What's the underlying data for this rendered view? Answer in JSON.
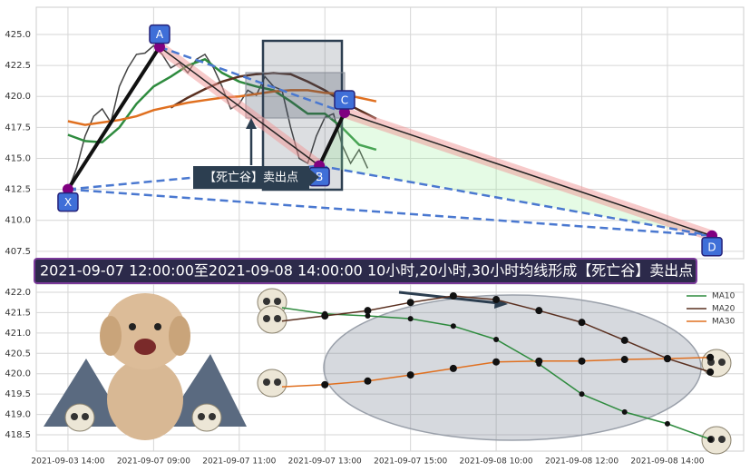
{
  "chart_data": [
    {
      "type": "line",
      "ylim": [
        406.9,
        427.2
      ],
      "yticks": [
        407.5,
        410.0,
        412.5,
        415.0,
        417.5,
        420.0,
        422.5,
        425.0
      ],
      "xlim": [
        -0.74,
        15.78
      ],
      "x": [
        0,
        0.4,
        0.8,
        1.2,
        1.6,
        2.0,
        2.4,
        2.8,
        3.2,
        3.6,
        4.0,
        4.4,
        4.8,
        5.2,
        5.6,
        6.0,
        6.4,
        6.8,
        7.2
      ],
      "price": {
        "color": "#444444",
        "x": [
          0,
          0.2,
          0.4,
          0.6,
          0.8,
          1.0,
          1.2,
          1.4,
          1.6,
          1.8,
          2.0,
          2.2,
          2.4,
          2.6,
          2.8,
          3.0,
          3.2,
          3.4,
          3.6,
          3.8,
          4.0,
          4.2,
          4.4,
          4.6,
          4.8,
          5.0,
          5.2,
          5.4,
          5.6,
          5.8,
          6.0,
          6.2,
          6.4,
          6.6,
          6.8,
          7.0
        ],
        "values": [
          412.4,
          414.2,
          416.8,
          418.4,
          419,
          417.9,
          420.8,
          422.3,
          423.4,
          423.5,
          424.1,
          423.4,
          422.3,
          422.7,
          421.9,
          423,
          423.4,
          422.3,
          420.8,
          419,
          419.4,
          420.5,
          420.1,
          421.6,
          420.8,
          420.5,
          417.5,
          415,
          414.6,
          416.8,
          418.3,
          418.6,
          416.1,
          414.6,
          415.7,
          414.2
        ]
      },
      "series": [
        {
          "color": "#2e8b3e",
          "values": [
            416.9,
            416.4,
            416.3,
            417.5,
            419.4,
            420.8,
            421.6,
            422.5,
            423,
            421.9,
            421.2,
            420.8,
            420.5,
            419.6,
            418.6,
            418.6,
            417.5,
            416.1,
            415.7
          ]
        },
        {
          "color": "#5a3020",
          "values": [
            null,
            null,
            null,
            null,
            null,
            null,
            419.1,
            419.9,
            420.6,
            421.2,
            421.6,
            421.8,
            421.9,
            421.8,
            421.2,
            420.5,
            419.6,
            418.9,
            418.2
          ]
        },
        {
          "color": "#e07020",
          "values": [
            418,
            417.7,
            417.9,
            418.1,
            418.4,
            418.9,
            419.2,
            419.5,
            419.7,
            419.9,
            420,
            420.2,
            420.4,
            420.5,
            420.5,
            420.3,
            420.2,
            419.9,
            419.6
          ]
        }
      ],
      "pattern": [
        {
          "label": "X",
          "x": 0,
          "y": 412.5
        },
        {
          "label": "A",
          "x": 2.14,
          "y": 424
        },
        {
          "label": "B",
          "x": 5.87,
          "y": 414.4
        },
        {
          "label": "C",
          "x": 6.46,
          "y": 418.7
        },
        {
          "label": "D",
          "x": 15.04,
          "y": 408.75
        }
      ],
      "annotation": "【死亡谷】卖出点",
      "banner": "2021-09-07 12:00:00至2021-09-08 14:00:00 10小时,20小时,30小时均线形成【死亡谷】卖出点"
    },
    {
      "type": "line",
      "ylim": [
        418.1,
        422.2
      ],
      "yticks": [
        418.5,
        419.0,
        419.5,
        420.0,
        420.5,
        421.0,
        421.5,
        422.0
      ],
      "categories": [
        "2021-09-03 14:00",
        null,
        "2021-09-07 09:00",
        null,
        "2021-09-07 11:00",
        null,
        "2021-09-07 13:00",
        null,
        "2021-09-07 15:00",
        null,
        "2021-09-08 10:00",
        null,
        "2021-09-08 12:00",
        null,
        "2021-09-08 14:00",
        null
      ],
      "legend": "upper right",
      "series": [
        {
          "name": "MA10",
          "color": "#2e8b3e",
          "values": [
            null,
            null,
            null,
            null,
            null,
            421.62,
            421.47,
            421.42,
            421.35,
            421.17,
            420.84,
            420.24,
            419.5,
            419.06,
            418.77,
            418.39
          ]
        },
        {
          "name": "MA20",
          "color": "#5a3020",
          "values": [
            null,
            null,
            null,
            null,
            null,
            421.29,
            421.42,
            421.55,
            421.75,
            421.91,
            421.82,
            421.55,
            421.26,
            420.82,
            420.37,
            420.04
          ]
        },
        {
          "name": "MA30",
          "color": "#e07020",
          "values": [
            null,
            null,
            null,
            null,
            null,
            419.68,
            419.73,
            419.82,
            419.97,
            420.13,
            420.29,
            420.31,
            420.31,
            420.35,
            420.37,
            420.4
          ]
        }
      ]
    }
  ]
}
